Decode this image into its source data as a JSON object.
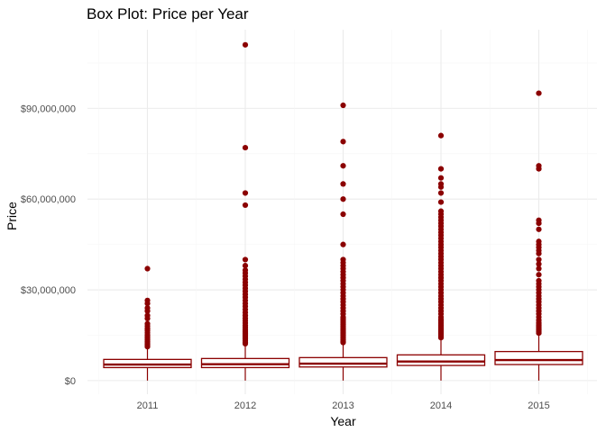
{
  "chart_data": {
    "type": "boxplot",
    "title": "Box Plot: Price per Year",
    "xlabel": "Year",
    "ylabel": "Price",
    "ylim": [
      -4500000,
      116000000
    ],
    "yticks": [
      0,
      30000000,
      60000000,
      90000000
    ],
    "ytick_labels": [
      "$0",
      "$30,000,000",
      "$60,000,000",
      "$90,000,000"
    ],
    "grid": true,
    "color": "#8B0000",
    "categories": [
      "2011",
      "2012",
      "2013",
      "2014",
      "2015"
    ],
    "boxes": [
      {
        "category": "2011",
        "whisker_low": 0,
        "q1": 4300000,
        "median": 5300000,
        "q3": 7000000,
        "whisker_high": 10800000,
        "outliers": [
          11200000,
          11600000,
          12000000,
          12500000,
          13000000,
          13500000,
          14000000,
          14500000,
          15000000,
          15800000,
          16500000,
          17200000,
          18000000,
          18800000,
          20500000,
          21500000,
          23000000,
          24000000,
          25500000,
          26500000,
          37000000
        ]
      },
      {
        "category": "2012",
        "whisker_low": 0,
        "q1": 4300000,
        "median": 5400000,
        "q3": 7300000,
        "whisker_high": 11800000,
        "outliers": [
          12200000,
          12700000,
          13200000,
          13700000,
          14200000,
          14700000,
          15200000,
          15700000,
          16200000,
          16800000,
          17500000,
          18200000,
          19000000,
          19800000,
          20600000,
          21500000,
          22500000,
          23500000,
          24500000,
          25500000,
          26500000,
          27500000,
          28500000,
          29500000,
          30500000,
          31500000,
          32500000,
          33500000,
          34500000,
          35500000,
          36500000,
          38000000,
          40000000,
          58000000,
          62000000,
          77000000,
          111000000
        ]
      },
      {
        "category": "2013",
        "whisker_low": 0,
        "q1": 4500000,
        "median": 5600000,
        "q3": 7600000,
        "whisker_high": 12200000,
        "outliers": [
          12600000,
          13000000,
          13500000,
          14000000,
          14500000,
          15000000,
          15500000,
          16000000,
          16500000,
          17000000,
          17500000,
          18000000,
          18500000,
          19000000,
          19500000,
          20000000,
          20500000,
          21000000,
          22000000,
          23000000,
          24000000,
          25000000,
          26000000,
          27000000,
          28000000,
          29000000,
          30000000,
          31000000,
          32000000,
          33000000,
          34000000,
          35000000,
          36000000,
          37000000,
          38000000,
          39000000,
          40000000,
          45000000,
          55000000,
          60000000,
          65000000,
          71000000,
          79000000,
          91000000
        ]
      },
      {
        "category": "2014",
        "whisker_low": 0,
        "q1": 5000000,
        "median": 6300000,
        "q3": 8500000,
        "whisker_high": 13800000,
        "outliers": [
          14200000,
          14700000,
          15200000,
          15700000,
          16200000,
          16700000,
          17200000,
          17700000,
          18200000,
          18700000,
          19200000,
          19700000,
          20200000,
          21000000,
          22000000,
          23000000,
          24000000,
          25000000,
          26000000,
          27000000,
          28000000,
          29000000,
          30000000,
          31000000,
          32000000,
          33000000,
          34000000,
          35000000,
          36000000,
          37000000,
          38000000,
          39000000,
          40000000,
          41000000,
          42000000,
          43000000,
          44000000,
          45000000,
          46000000,
          47000000,
          48000000,
          49000000,
          50000000,
          51000000,
          52000000,
          53000000,
          54000000,
          55000000,
          56000000,
          59000000,
          62000000,
          64000000,
          65000000,
          67000000,
          70000000,
          81000000
        ]
      },
      {
        "category": "2015",
        "whisker_low": 0,
        "q1": 5300000,
        "median": 6800000,
        "q3": 9600000,
        "whisker_high": 15300000,
        "outliers": [
          15700000,
          16200000,
          16700000,
          17200000,
          17700000,
          18200000,
          18700000,
          19200000,
          20000000,
          21000000,
          22000000,
          23000000,
          24000000,
          25000000,
          26000000,
          27000000,
          28000000,
          29000000,
          30000000,
          31000000,
          32000000,
          33000000,
          35000000,
          37000000,
          38500000,
          40000000,
          42000000,
          43000000,
          44000000,
          45000000,
          46000000,
          50000000,
          52000000,
          53000000,
          70000000,
          71000000,
          95000000
        ]
      }
    ]
  }
}
